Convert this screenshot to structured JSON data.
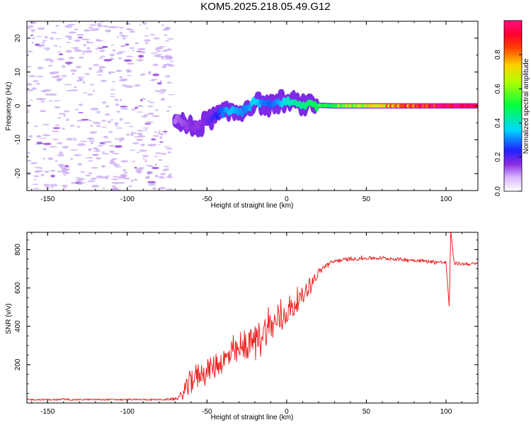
{
  "title": "KOM5.2025.218.05.49.G12",
  "colors": {
    "snr_line": "#ee2222",
    "axes": "#000000",
    "background": "#ffffff",
    "noise": "#c8a8f0"
  },
  "chart_data": [
    {
      "id": "spectrogram",
      "type": "heatmap",
      "title": "KOM5.2025.218.05.49.G12",
      "xlabel": "Height of straight line (km)",
      "ylabel": "Frequency (Hz)",
      "xlim": [
        -163,
        120
      ],
      "ylim": [
        -25,
        25
      ],
      "x_ticks": [
        -150,
        -100,
        -50,
        0,
        50,
        100
      ],
      "y_ticks": [
        -20,
        -10,
        0,
        10,
        20
      ],
      "colorbar": {
        "label": "Normalized spectral amplitude",
        "range": [
          0,
          1
        ],
        "ticks": [
          "0.0",
          "0.2",
          "0.4",
          "0.6",
          "0.8"
        ]
      },
      "ridge": [
        {
          "x": -70,
          "f": -4.0,
          "amp": 0.12
        },
        {
          "x": -65,
          "f": -5.5,
          "amp": 0.14
        },
        {
          "x": -60,
          "f": -6.5,
          "amp": 0.16
        },
        {
          "x": -55,
          "f": -6.0,
          "amp": 0.15
        },
        {
          "x": -50,
          "f": -4.5,
          "amp": 0.18
        },
        {
          "x": -45,
          "f": -3.0,
          "amp": 0.22
        },
        {
          "x": -40,
          "f": -2.0,
          "amp": 0.3
        },
        {
          "x": -35,
          "f": -1.5,
          "amp": 0.35
        },
        {
          "x": -30,
          "f": -2.0,
          "amp": 0.32
        },
        {
          "x": -25,
          "f": -0.5,
          "amp": 0.3
        },
        {
          "x": -20,
          "f": 1.0,
          "amp": 0.38
        },
        {
          "x": -15,
          "f": 0.8,
          "amp": 0.3
        },
        {
          "x": -10,
          "f": 0.0,
          "amp": 0.28
        },
        {
          "x": -5,
          "f": 1.2,
          "amp": 0.32
        },
        {
          "x": 0,
          "f": 1.2,
          "amp": 0.4
        },
        {
          "x": 5,
          "f": 0.8,
          "amp": 0.42
        },
        {
          "x": 10,
          "f": 0.5,
          "amp": 0.45
        },
        {
          "x": 20,
          "f": 0.2,
          "amp": 0.5
        },
        {
          "x": 30,
          "f": 0.0,
          "amp": 0.55
        },
        {
          "x": 40,
          "f": 0.0,
          "amp": 0.62
        },
        {
          "x": 50,
          "f": 0.0,
          "amp": 0.68
        },
        {
          "x": 60,
          "f": 0.0,
          "amp": 0.75
        },
        {
          "x": 70,
          "f": 0.0,
          "amp": 0.82
        },
        {
          "x": 80,
          "f": 0.0,
          "amp": 0.88
        },
        {
          "x": 90,
          "f": 0.0,
          "amp": 0.92
        },
        {
          "x": 100,
          "f": 0.0,
          "amp": 0.95
        },
        {
          "x": 110,
          "f": 0.0,
          "amp": 0.97
        },
        {
          "x": 120,
          "f": 0.0,
          "amp": 0.98
        }
      ],
      "noise_region": {
        "x_from": -163,
        "x_to": -72,
        "amp": 0.03
      }
    },
    {
      "id": "snr",
      "type": "line",
      "xlabel": "Height of straight line (km)",
      "ylabel": "SNR (v/v)",
      "xlim": [
        -163,
        120
      ],
      "ylim": [
        0,
        890
      ],
      "x_ticks": [
        -150,
        -100,
        -50,
        0,
        50,
        100
      ],
      "y_ticks": [
        200,
        400,
        600,
        800
      ],
      "series": [
        {
          "name": "SNR",
          "x": [
            -163,
            -150,
            -130,
            -110,
            -90,
            -75,
            -68,
            -64,
            -60,
            -56,
            -52,
            -48,
            -44,
            -40,
            -36,
            -32,
            -28,
            -24,
            -20,
            -16,
            -12,
            -8,
            -4,
            0,
            5,
            10,
            15,
            20,
            25,
            30,
            40,
            50,
            60,
            70,
            80,
            90,
            95,
            100,
            102,
            103,
            105,
            110,
            120
          ],
          "mean": [
            18,
            18,
            18,
            18,
            18,
            18,
            25,
            60,
            120,
            150,
            160,
            180,
            200,
            220,
            240,
            260,
            280,
            300,
            330,
            360,
            390,
            410,
            440,
            470,
            510,
            560,
            620,
            680,
            720,
            740,
            750,
            755,
            755,
            750,
            745,
            738,
            735,
            732,
            500,
            900,
            730,
            725,
            725
          ],
          "spread": [
            8,
            8,
            8,
            8,
            8,
            8,
            20,
            80,
            130,
            120,
            100,
            110,
            120,
            130,
            130,
            130,
            130,
            140,
            150,
            160,
            170,
            160,
            140,
            120,
            100,
            90,
            70,
            40,
            25,
            20,
            18,
            18,
            18,
            18,
            18,
            18,
            18,
            18,
            0,
            0,
            18,
            18,
            18
          ]
        }
      ]
    }
  ]
}
